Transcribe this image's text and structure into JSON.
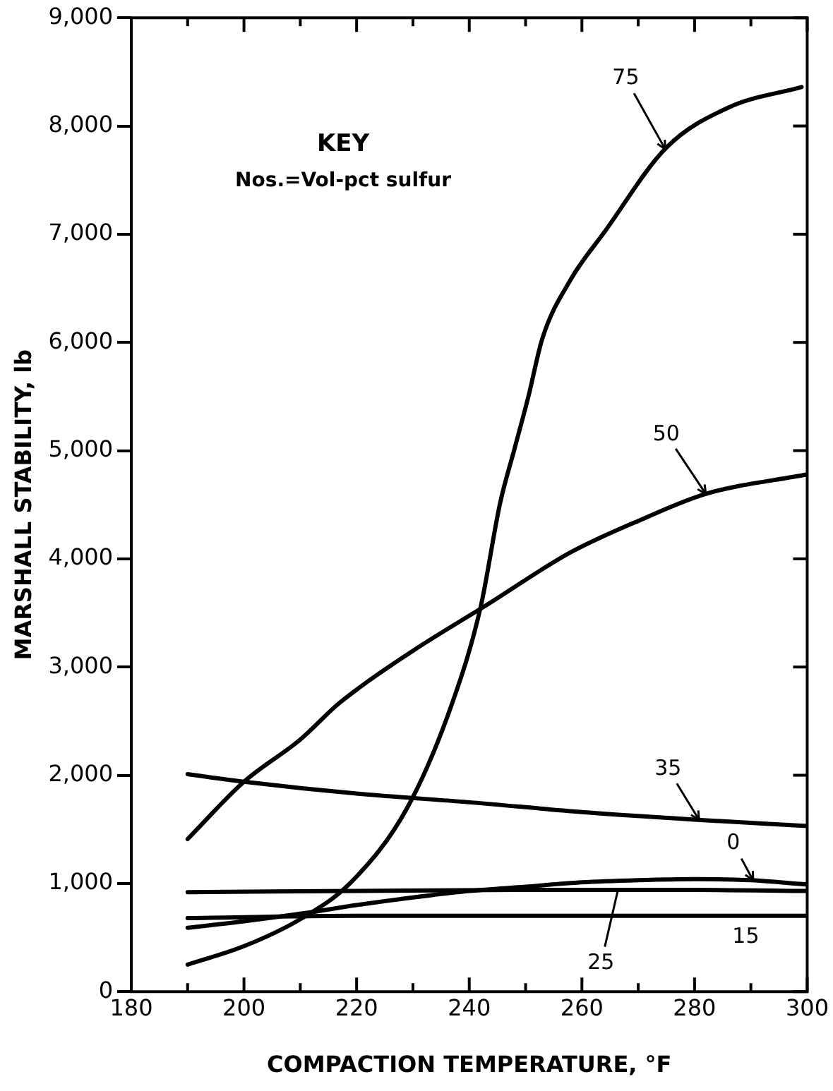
{
  "chart_data": {
    "type": "line",
    "xlabel": "COMPACTION TEMPERATURE, °F",
    "ylabel": "MARSHALL STABILITY, lb",
    "xlim": [
      180,
      300
    ],
    "ylim": [
      0,
      9000
    ],
    "xticks": [
      180,
      {
        "value": 190,
        "label": null
      },
      200,
      {
        "value": 210,
        "label": null
      },
      220,
      {
        "value": 230,
        "label": null
      },
      240,
      {
        "value": 250,
        "label": null
      },
      260,
      {
        "value": 270,
        "label": null
      },
      280,
      {
        "value": 290,
        "label": null
      },
      300
    ],
    "yticks": [
      {
        "value": 0,
        "label": "0"
      },
      {
        "value": 1000,
        "label": "1,000"
      },
      {
        "value": 2000,
        "label": "2,000"
      },
      {
        "value": 3000,
        "label": "3,000"
      },
      {
        "value": 4000,
        "label": "4,000"
      },
      {
        "value": 5000,
        "label": "5,000"
      },
      {
        "value": 6000,
        "label": "6,000"
      },
      {
        "value": 7000,
        "label": "7,000"
      },
      {
        "value": 8000,
        "label": "8,000"
      },
      {
        "value": 9000,
        "label": "9,000"
      }
    ],
    "grid": false,
    "legend": false,
    "marker": "none",
    "line_style": "solid",
    "series": [
      {
        "name": "75",
        "color": "#000000",
        "x": [
          190,
          200,
          210,
          219,
          229,
          237,
          242,
          245.5,
          248,
          250.5,
          253,
          258,
          264,
          275,
          286,
          299
        ],
        "values": [
          250,
          420,
          670,
          1010,
          1700,
          2670,
          3550,
          4520,
          5010,
          5500,
          6040,
          6580,
          7020,
          7800,
          8170,
          8360
        ]
      },
      {
        "name": "50",
        "color": "#000000",
        "x": [
          190,
          200,
          210,
          217,
          230,
          243,
          258,
          270,
          282,
          300
        ],
        "values": [
          1410,
          1940,
          2330,
          2670,
          3150,
          3570,
          4060,
          4350,
          4600,
          4780
        ]
      },
      {
        "name": "35",
        "color": "#000000",
        "x": [
          190,
          200,
          220,
          240,
          260,
          280,
          300
        ],
        "values": [
          2010,
          1940,
          1830,
          1750,
          1660,
          1590,
          1530
        ]
      },
      {
        "name": "0",
        "color": "#000000",
        "x": [
          190,
          200,
          210,
          220,
          230,
          240,
          250,
          260,
          270,
          280,
          290,
          300
        ],
        "values": [
          590,
          650,
          720,
          800,
          870,
          930,
          970,
          1010,
          1030,
          1040,
          1030,
          990
        ]
      },
      {
        "name": "25",
        "color": "#000000",
        "x": [
          190,
          220,
          250,
          280,
          300
        ],
        "values": [
          920,
          930,
          940,
          940,
          930
        ]
      },
      {
        "name": "15",
        "color": "#000000",
        "x": [
          190,
          220,
          260,
          300
        ],
        "values": [
          680,
          700,
          700,
          700
        ]
      }
    ],
    "annotations": [
      "KEY",
      "Nos.=Vol-pct sulfur"
    ]
  }
}
